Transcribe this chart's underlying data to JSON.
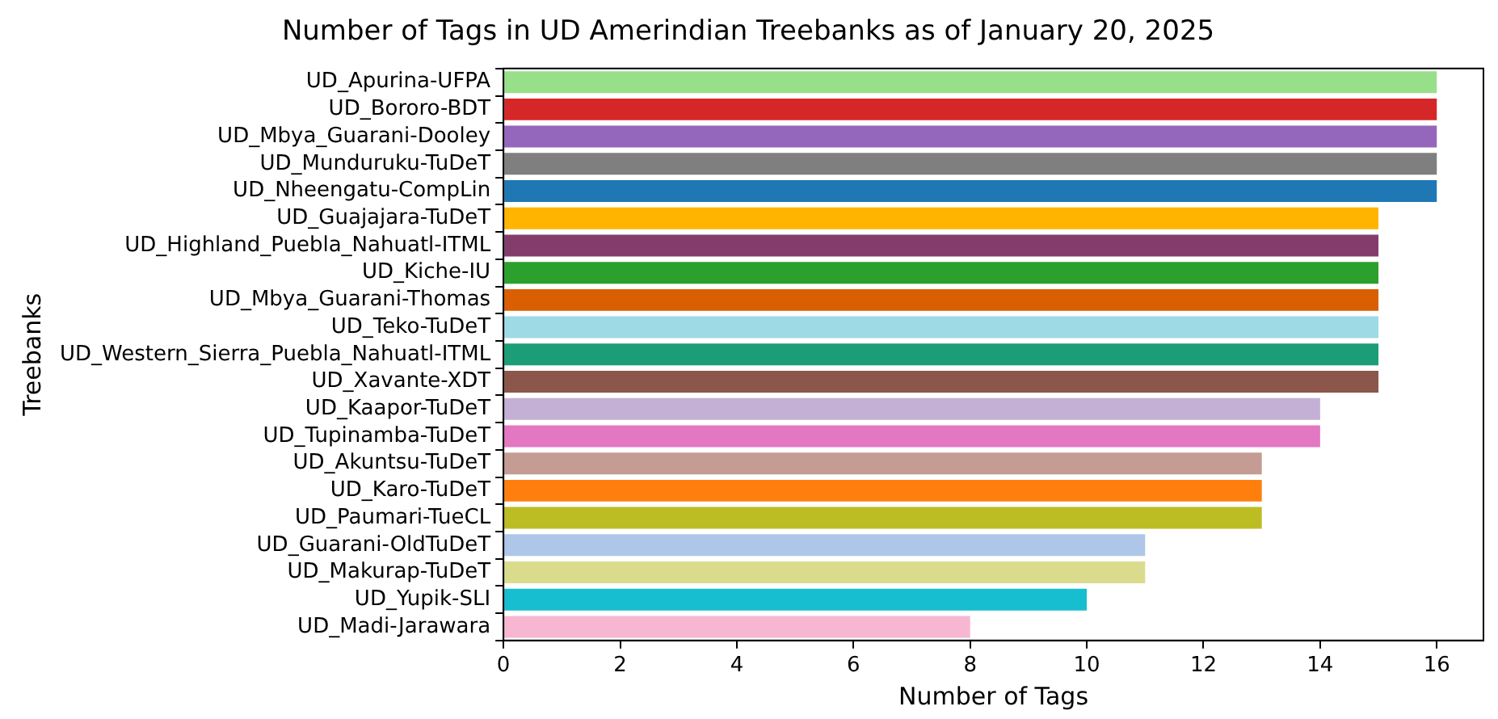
{
  "chart_data": {
    "type": "bar",
    "orientation": "horizontal",
    "title": "Number of Tags in UD Amerindian Treebanks as of January 20, 2025",
    "xlabel": "Number of Tags",
    "ylabel": "Treebanks",
    "categories": [
      "UD_Apurina-UFPA",
      "UD_Bororo-BDT",
      "UD_Mbya_Guarani-Dooley",
      "UD_Munduruku-TuDeT",
      "UD_Nheengatu-CompLin",
      "UD_Guajajara-TuDeT",
      "UD_Highland_Puebla_Nahuatl-ITML",
      "UD_Kiche-IU",
      "UD_Mbya_Guarani-Thomas",
      "UD_Teko-TuDeT",
      "UD_Western_Sierra_Puebla_Nahuatl-ITML",
      "UD_Xavante-XDT",
      "UD_Kaapor-TuDeT",
      "UD_Tupinamba-TuDeT",
      "UD_Akuntsu-TuDeT",
      "UD_Karo-TuDeT",
      "UD_Paumari-TueCL",
      "UD_Guarani-OldTuDeT",
      "UD_Makurap-TuDeT",
      "UD_Yupik-SLI",
      "UD_Madi-Jarawara"
    ],
    "values": [
      16,
      16,
      16,
      16,
      16,
      15,
      15,
      15,
      15,
      15,
      15,
      15,
      14,
      14,
      13,
      13,
      13,
      11,
      11,
      10,
      8
    ],
    "colors": [
      "#98df8a",
      "#d62728",
      "#9467bd",
      "#7f7f7f",
      "#1f77b4",
      "#ffb400",
      "#843c6c",
      "#2ca02c",
      "#d95f02",
      "#9edae5",
      "#1b9e77",
      "#8c564b",
      "#c5b0d5",
      "#e377c2",
      "#c49c94",
      "#ff7f0e",
      "#bcbd22",
      "#aec7e8",
      "#dbdb8d",
      "#17becf",
      "#f7b6d2"
    ],
    "xlim": [
      0,
      16.8
    ],
    "xticks": [
      0,
      2,
      4,
      6,
      8,
      10,
      12,
      14,
      16
    ],
    "grid": false,
    "legend": false
  }
}
